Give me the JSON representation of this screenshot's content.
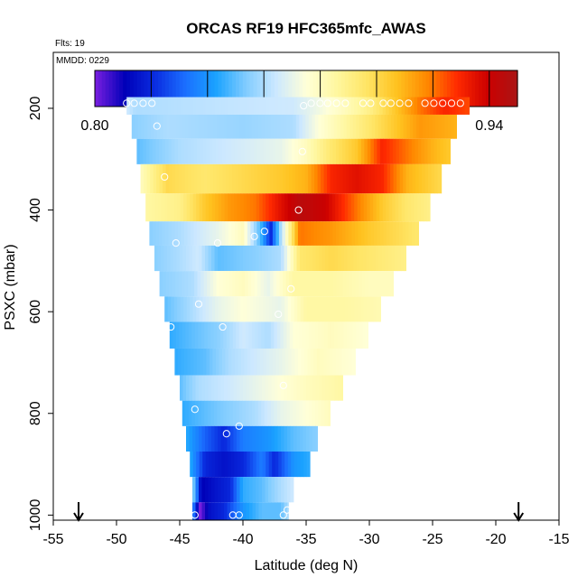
{
  "chart_data": {
    "type": "heatmap",
    "title": "ORCAS RF19 HFC365mfc_AWAS",
    "annotations": {
      "flights": "Flts: 19",
      "date": "MMDD: 0229"
    },
    "xlabel": "Latitude (deg N)",
    "ylabel": "PSXC (mbar)",
    "xlim": [
      -55,
      -15
    ],
    "ylim": [
      1010,
      90
    ],
    "y_reversed": true,
    "x_ticks": [
      -55,
      -50,
      -45,
      -40,
      -35,
      -30,
      -25,
      -20,
      -15
    ],
    "y_ticks": [
      200,
      400,
      600,
      800,
      1000
    ],
    "colorbar": {
      "min": 0.8,
      "max": 0.95,
      "ticks": [
        "0.80",
        "0.82",
        "0.84",
        "0.86",
        "0.88",
        "0.90",
        "0.92",
        "0.94"
      ],
      "colors": [
        "#7a1fe0",
        "#0000b8",
        "#0a2de0",
        "#1b6fff",
        "#1aa2ff",
        "#80ccff",
        "#cce8ff",
        "#ffffd8",
        "#fff7a0",
        "#ffe566",
        "#ffc21f",
        "#ff8800",
        "#ff2a00",
        "#cc0000",
        "#aa1515"
      ]
    },
    "arrows_latitude": [
      -53,
      -18.2
    ],
    "bands": [
      {
        "p": 190,
        "west": -49.2,
        "east": -22.1,
        "stops": [
          [
            -49.2,
            0.865
          ],
          [
            -48.5,
            0.86
          ],
          [
            -36,
            0.865
          ],
          [
            -34.5,
            0.87
          ],
          [
            -32,
            0.88
          ],
          [
            -30,
            0.89
          ],
          [
            -28,
            0.905
          ],
          [
            -26,
            0.92
          ],
          [
            -24,
            0.93
          ],
          [
            -22.1,
            0.925
          ]
        ]
      },
      {
        "p": 235,
        "west": -48.8,
        "east": -23.1,
        "stops": [
          [
            -48.8,
            0.855
          ],
          [
            -46,
            0.86
          ],
          [
            -40,
            0.857
          ],
          [
            -36,
            0.86
          ],
          [
            -34,
            0.875
          ],
          [
            -32,
            0.885
          ],
          [
            -30,
            0.895
          ],
          [
            -28,
            0.905
          ],
          [
            -26,
            0.915
          ],
          [
            -23.1,
            0.91
          ]
        ]
      },
      {
        "p": 285,
        "west": -48.4,
        "east": -23.6,
        "stops": [
          [
            -48.4,
            0.85
          ],
          [
            -45,
            0.86
          ],
          [
            -41,
            0.865
          ],
          [
            -37,
            0.87
          ],
          [
            -35,
            0.88
          ],
          [
            -33,
            0.895
          ],
          [
            -31,
            0.905
          ],
          [
            -29,
            0.93
          ],
          [
            -27,
            0.92
          ],
          [
            -25,
            0.91
          ],
          [
            -23.6,
            0.905
          ]
        ]
      },
      {
        "p": 335,
        "west": -48.1,
        "east": -24.3,
        "stops": [
          [
            -48.1,
            0.88
          ],
          [
            -46,
            0.9
          ],
          [
            -43,
            0.895
          ],
          [
            -40,
            0.9
          ],
          [
            -37,
            0.905
          ],
          [
            -35,
            0.91
          ],
          [
            -33,
            0.93
          ],
          [
            -31,
            0.935
          ],
          [
            -29,
            0.93
          ],
          [
            -27,
            0.91
          ],
          [
            -24.3,
            0.9
          ]
        ]
      },
      {
        "p": 400,
        "west": -47.7,
        "east": -25.2,
        "stops": [
          [
            -47.7,
            0.885
          ],
          [
            -45,
            0.89
          ],
          [
            -43,
            0.905
          ],
          [
            -41,
            0.915
          ],
          [
            -39,
            0.92
          ],
          [
            -37,
            0.935
          ],
          [
            -35.5,
            0.945
          ],
          [
            -33.5,
            0.94
          ],
          [
            -31,
            0.92
          ],
          [
            -29,
            0.905
          ],
          [
            -27,
            0.895
          ],
          [
            -25.2,
            0.89
          ]
        ]
      },
      {
        "p": 445,
        "west": -47.4,
        "east": -26.1,
        "stops": [
          [
            -47.4,
            0.855
          ],
          [
            -45,
            0.86
          ],
          [
            -42,
            0.87
          ],
          [
            -40,
            0.88
          ],
          [
            -38.5,
            0.845
          ],
          [
            -37.8,
            0.82
          ],
          [
            -37,
            0.86
          ],
          [
            -35.5,
            0.92
          ],
          [
            -33,
            0.915
          ],
          [
            -30,
            0.905
          ],
          [
            -28,
            0.9
          ],
          [
            -26.1,
            0.895
          ]
        ]
      },
      {
        "p": 495,
        "west": -47.0,
        "east": -27.1,
        "stops": [
          [
            -47.0,
            0.855
          ],
          [
            -45,
            0.86
          ],
          [
            -43.5,
            0.865
          ],
          [
            -42,
            0.85
          ],
          [
            -39,
            0.855
          ],
          [
            -37,
            0.86
          ],
          [
            -35.5,
            0.895
          ],
          [
            -33,
            0.9
          ],
          [
            -30,
            0.895
          ],
          [
            -27.1,
            0.89
          ]
        ]
      },
      {
        "p": 545,
        "west": -46.6,
        "east": -28.1,
        "stops": [
          [
            -46.6,
            0.855
          ],
          [
            -44,
            0.86
          ],
          [
            -42,
            0.875
          ],
          [
            -40,
            0.88
          ],
          [
            -38,
            0.87
          ],
          [
            -36,
            0.885
          ],
          [
            -33,
            0.885
          ],
          [
            -30,
            0.88
          ],
          [
            -28.1,
            0.88
          ]
        ]
      },
      {
        "p": 595,
        "west": -46.2,
        "east": -29.1,
        "stops": [
          [
            -46.2,
            0.85
          ],
          [
            -44,
            0.86
          ],
          [
            -42,
            0.87
          ],
          [
            -40,
            0.875
          ],
          [
            -37,
            0.87
          ],
          [
            -35,
            0.885
          ],
          [
            -32,
            0.885
          ],
          [
            -29.1,
            0.882
          ]
        ]
      },
      {
        "p": 645,
        "west": -45.8,
        "east": -30.1,
        "stops": [
          [
            -45.8,
            0.845
          ],
          [
            -44,
            0.85
          ],
          [
            -42,
            0.855
          ],
          [
            -40,
            0.865
          ],
          [
            -38,
            0.86
          ],
          [
            -36,
            0.875
          ],
          [
            -33,
            0.88
          ],
          [
            -30.1,
            0.875
          ]
        ]
      },
      {
        "p": 700,
        "west": -45.4,
        "east": -31.1,
        "stops": [
          [
            -45.4,
            0.845
          ],
          [
            -43,
            0.85
          ],
          [
            -41,
            0.86
          ],
          [
            -39,
            0.865
          ],
          [
            -37,
            0.87
          ],
          [
            -34,
            0.88
          ],
          [
            -31.1,
            0.875
          ]
        ]
      },
      {
        "p": 750,
        "west": -45.0,
        "east": -32.1,
        "stops": [
          [
            -45.0,
            0.85
          ],
          [
            -43.5,
            0.86
          ],
          [
            -41,
            0.865
          ],
          [
            -39,
            0.87
          ],
          [
            -37,
            0.875
          ],
          [
            -35,
            0.88
          ],
          [
            -32.1,
            0.885
          ]
        ]
      },
      {
        "p": 800,
        "west": -44.8,
        "east": -33.1,
        "stops": [
          [
            -44.8,
            0.845
          ],
          [
            -43,
            0.85
          ],
          [
            -41,
            0.855
          ],
          [
            -39,
            0.86
          ],
          [
            -37,
            0.87
          ],
          [
            -35,
            0.875
          ],
          [
            -33.1,
            0.88
          ]
        ]
      },
      {
        "p": 850,
        "west": -44.5,
        "east": -34.1,
        "stops": [
          [
            -44.5,
            0.845
          ],
          [
            -43,
            0.83
          ],
          [
            -41.5,
            0.82
          ],
          [
            -40,
            0.835
          ],
          [
            -38,
            0.84
          ],
          [
            -36,
            0.85
          ],
          [
            -34.1,
            0.855
          ]
        ]
      },
      {
        "p": 900,
        "west": -44.2,
        "east": -34.7,
        "stops": [
          [
            -44.2,
            0.845
          ],
          [
            -43,
            0.82
          ],
          [
            -41.5,
            0.815
          ],
          [
            -40,
            0.82
          ],
          [
            -38.5,
            0.835
          ],
          [
            -37.5,
            0.82
          ],
          [
            -36,
            0.84
          ],
          [
            -34.7,
            0.845
          ]
        ]
      },
      {
        "p": 950,
        "west": -44.0,
        "east": -36.0,
        "stops": [
          [
            -44.0,
            0.86
          ],
          [
            -43.3,
            0.81
          ],
          [
            -42.3,
            0.815
          ],
          [
            -41,
            0.82
          ],
          [
            -40,
            0.845
          ],
          [
            -38.5,
            0.85
          ],
          [
            -37,
            0.86
          ],
          [
            -36.0,
            0.865
          ]
        ]
      },
      {
        "p": 1000,
        "west": -44.0,
        "east": -36.4,
        "stops": [
          [
            -44.0,
            0.84
          ],
          [
            -43.4,
            0.8
          ],
          [
            -42.6,
            0.815
          ],
          [
            -41.5,
            0.82
          ],
          [
            -40,
            0.84
          ],
          [
            -38.5,
            0.85
          ],
          [
            -37,
            0.85
          ],
          [
            -36.4,
            0.86
          ]
        ]
      }
    ],
    "sample_points": [
      [
        -49.2,
        190
      ],
      [
        -48.6,
        190
      ],
      [
        -47.9,
        190
      ],
      [
        -47.2,
        190
      ],
      [
        -35.2,
        195
      ],
      [
        -34.6,
        190
      ],
      [
        -33.9,
        190
      ],
      [
        -33.3,
        190
      ],
      [
        -32.6,
        190
      ],
      [
        -31.9,
        190
      ],
      [
        -30.5,
        190
      ],
      [
        -29.9,
        190
      ],
      [
        -28.9,
        190
      ],
      [
        -28.3,
        190
      ],
      [
        -27.6,
        190
      ],
      [
        -26.9,
        190
      ],
      [
        -25.6,
        190
      ],
      [
        -24.9,
        190
      ],
      [
        -24.2,
        190
      ],
      [
        -23.5,
        190
      ],
      [
        -22.8,
        190
      ],
      [
        -46.8,
        235
      ],
      [
        -35.3,
        285
      ],
      [
        -46.2,
        335
      ],
      [
        -35.6,
        400
      ],
      [
        -45.3,
        465
      ],
      [
        -42.0,
        465
      ],
      [
        -39.1,
        452
      ],
      [
        -38.3,
        442
      ],
      [
        -36.2,
        555
      ],
      [
        -43.5,
        585
      ],
      [
        -37.2,
        605
      ],
      [
        -45.7,
        630
      ],
      [
        -41.6,
        630
      ],
      [
        -36.8,
        745
      ],
      [
        -43.8,
        792
      ],
      [
        -44.8,
        835
      ],
      [
        -41.3,
        840
      ],
      [
        -40.3,
        825
      ],
      [
        -43.8,
        1000
      ],
      [
        -40.8,
        1000
      ],
      [
        -40.3,
        1000
      ],
      [
        -36.8,
        1000
      ],
      [
        -36.5,
        990
      ]
    ]
  }
}
